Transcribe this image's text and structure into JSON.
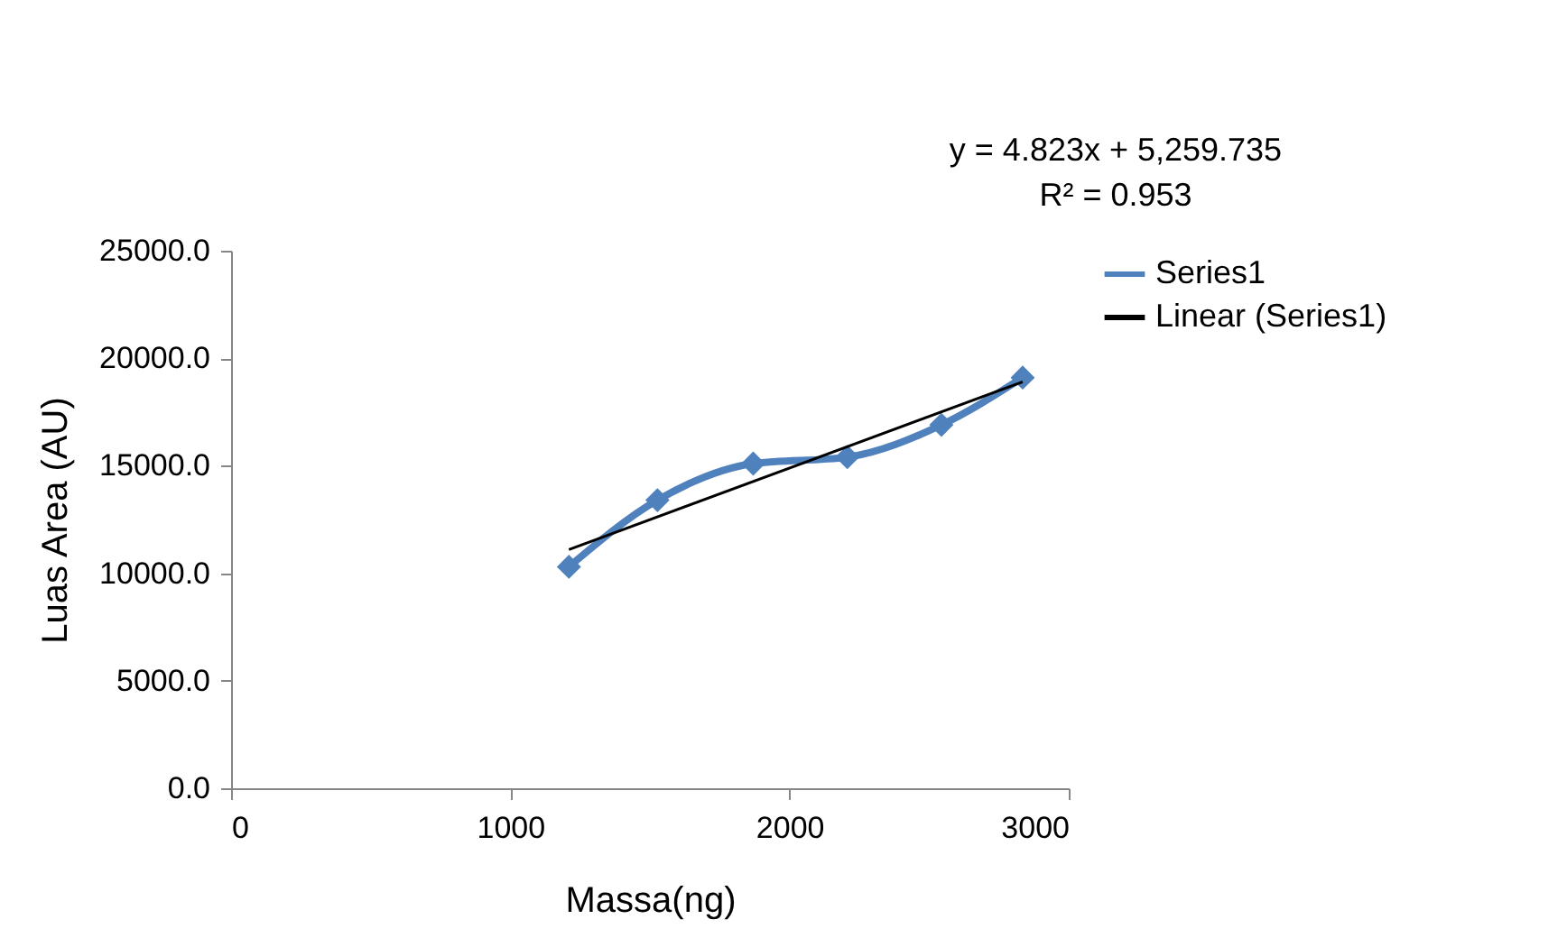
{
  "chart_data": {
    "type": "line",
    "xlabel": "Massa(ng)",
    "ylabel": "Luas Area (AU)",
    "xlim": [
      0,
      3000
    ],
    "xticks": [
      0,
      {
        "value": 1000,
        "label": "1000"
      },
      {
        "value": 2000,
        "label": "2000"
      },
      {
        "value": 3000,
        "label": "3000"
      }
    ],
    "ylim": [
      0,
      25000
    ],
    "yticks": [
      {
        "value": 0,
        "label": "0.0"
      },
      {
        "value": 5000,
        "label": "5000.0"
      },
      {
        "value": 10000,
        "label": "10000.0"
      },
      {
        "value": 15000,
        "label": "15000.0"
      },
      {
        "value": 20000,
        "label": "20000.0"
      },
      {
        "value": 25000,
        "label": "25000.0"
      }
    ],
    "series": [
      {
        "name": "Series1",
        "color": "#4f81bd",
        "marker": "diamond",
        "line_style": "solid",
        "x": [
          1210,
          1527,
          1870,
          2207,
          2544,
          2835
        ],
        "values": [
          10300,
          13400,
          15100,
          15400,
          16900,
          19100
        ]
      },
      {
        "name": "Linear (Series1)",
        "color": "#000000",
        "marker": "none",
        "line_style": "solid",
        "x": [
          1210,
          2835
        ],
        "values": [
          11100,
          18900
        ]
      }
    ],
    "annotations": [
      "y = 4.823x + 5,259.735",
      "R² = 0.953"
    ],
    "legend": "right",
    "grid": false
  }
}
